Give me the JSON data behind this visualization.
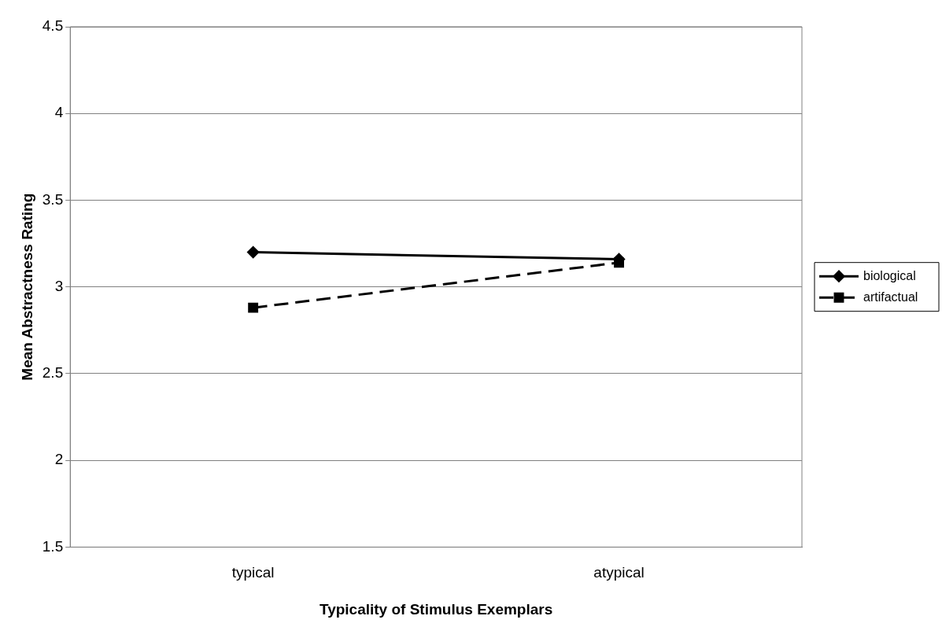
{
  "chart_data": {
    "type": "line",
    "xlabel": "Typicality of Stimulus Exemplars",
    "ylabel": "Mean Abstractness Rating",
    "categories": [
      "typical",
      "atypical"
    ],
    "series": [
      {
        "name": "biological",
        "color": "#000000",
        "values": [
          3.2,
          3.16
        ],
        "marker": "diamond",
        "line_style": "solid"
      },
      {
        "name": "artifactual",
        "color": "#000000",
        "values": [
          2.88,
          3.14
        ],
        "marker": "square",
        "line_style": "dashed"
      }
    ],
    "ylim": [
      1.5,
      4.5
    ],
    "yticks": [
      1.5,
      2,
      2.5,
      3,
      3.5,
      4,
      4.5
    ],
    "grid": "y",
    "legend": "right"
  }
}
